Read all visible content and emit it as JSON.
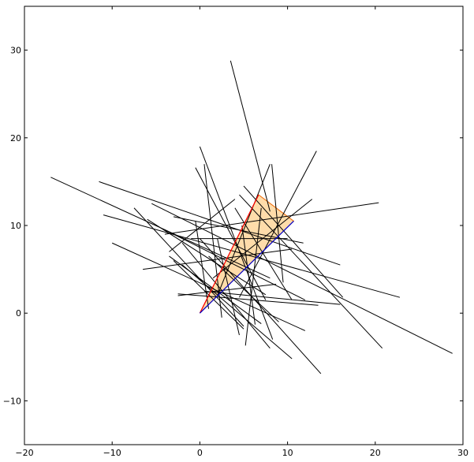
{
  "chart_data": {
    "type": "line",
    "title": "",
    "xlabel": "",
    "ylabel": "",
    "xlim": [
      -20,
      30
    ],
    "ylim": [
      -15,
      35
    ],
    "grid": false,
    "x_ticks": [
      -20,
      -10,
      0,
      10,
      20,
      30
    ],
    "y_ticks": [
      -10,
      0,
      10,
      20,
      30
    ],
    "x_tick_labels": [
      "−20",
      "−10",
      "0",
      "10",
      "20",
      "30"
    ],
    "y_tick_labels": [
      "−10",
      "0",
      "10",
      "20",
      "30"
    ],
    "colors": {
      "segment": "#000000",
      "polygon_fill": "#ffdcaa",
      "polygon_edge": "#ee6600",
      "ray_left": "#ff0000",
      "ray_right": "#0000cc"
    },
    "polygon": [
      [
        0,
        0
      ],
      [
        6.7,
        13.5
      ],
      [
        10.7,
        10.5
      ]
    ],
    "rays": [
      {
        "from": [
          0,
          0
        ],
        "to": [
          6.7,
          13.5
        ],
        "color": "ray_left"
      },
      {
        "from": [
          0,
          0
        ],
        "to": [
          10.7,
          10.5
        ],
        "color": "ray_right"
      }
    ],
    "segments": [
      [
        [
          -17,
          15.5
        ],
        [
          8,
          4
        ]
      ],
      [
        [
          -11.5,
          15
        ],
        [
          16,
          5.5
        ]
      ],
      [
        [
          -11,
          11.2
        ],
        [
          22.8,
          1.8
        ]
      ],
      [
        [
          -10,
          8
        ],
        [
          12,
          -2
        ]
      ],
      [
        [
          -5.5,
          12.5
        ],
        [
          28.8,
          -4.6
        ]
      ],
      [
        [
          -3,
          11
        ],
        [
          11.8,
          8
        ]
      ],
      [
        [
          -4,
          9.5
        ],
        [
          12,
          1.5
        ]
      ],
      [
        [
          -6,
          10.7
        ],
        [
          7.5,
          2.1
        ]
      ],
      [
        [
          -7.5,
          12
        ],
        [
          5,
          -1.5
        ]
      ],
      [
        [
          -3.5,
          6.5
        ],
        [
          7,
          -1.2
        ]
      ],
      [
        [
          -2,
          8
        ],
        [
          8,
          -4
        ]
      ],
      [
        [
          -3,
          6
        ],
        [
          5,
          -1.8
        ]
      ],
      [
        [
          -2,
          5.5
        ],
        [
          10.5,
          -5.2
        ]
      ],
      [
        [
          -6.5,
          5
        ],
        [
          10.5,
          7.3
        ]
      ],
      [
        [
          -3.5,
          7
        ],
        [
          4,
          13
        ]
      ],
      [
        [
          -2.5,
          2.2
        ],
        [
          13.5,
          0.9
        ]
      ],
      [
        [
          -2.5,
          2
        ],
        [
          8.7,
          3.3
        ]
      ],
      [
        [
          -4,
          9
        ],
        [
          20.4,
          12.6
        ]
      ],
      [
        [
          -1,
          8.5
        ],
        [
          10,
          8.5
        ]
      ],
      [
        [
          -0.5,
          10.5
        ],
        [
          1,
          0.5
        ]
      ],
      [
        [
          3.5,
          28.8
        ],
        [
          8,
          11.6
        ]
      ],
      [
        [
          0,
          19
        ],
        [
          8.3,
          -3
        ]
      ],
      [
        [
          -0.5,
          16.6
        ],
        [
          7.5,
          1.5
        ]
      ],
      [
        [
          0.5,
          17
        ],
        [
          2.5,
          -0.5
        ]
      ],
      [
        [
          1,
          6.5
        ],
        [
          9,
          -1
        ]
      ],
      [
        [
          2,
          8.5
        ],
        [
          4.5,
          -2.5
        ]
      ],
      [
        [
          4,
          12
        ],
        [
          10.5,
          1.5
        ]
      ],
      [
        [
          4.8,
          10
        ],
        [
          6.3,
          -1.3
        ]
      ],
      [
        [
          7,
          12
        ],
        [
          5.2,
          -3.7
        ]
      ],
      [
        [
          4.5,
          1.8
        ],
        [
          13.3,
          18.5
        ]
      ],
      [
        [
          2,
          2
        ],
        [
          8,
          17
        ]
      ],
      [
        [
          8.2,
          17
        ],
        [
          9.5,
          3.5
        ]
      ],
      [
        [
          4.5,
          13.5
        ],
        [
          20.8,
          -4
        ]
      ],
      [
        [
          5,
          14.5
        ],
        [
          16.3,
          1.8
        ]
      ],
      [
        [
          1.5,
          4
        ],
        [
          12.8,
          13
        ]
      ],
      [
        [
          0,
          8.5
        ],
        [
          13.8,
          -6.9
        ]
      ],
      [
        [
          0.5,
          2.5
        ],
        [
          16,
          1
        ]
      ]
    ]
  }
}
